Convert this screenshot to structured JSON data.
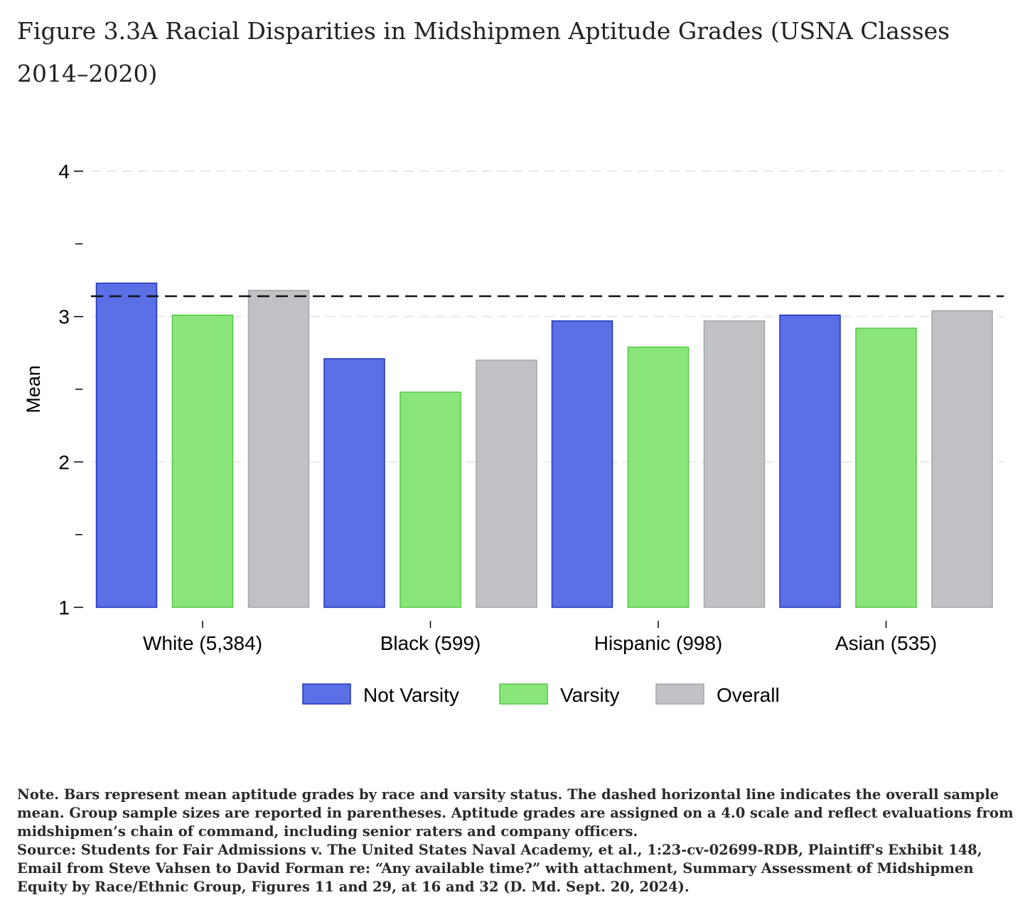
{
  "figure": {
    "title_line1": "Figure 3.3A Racial Disparities in Midshipmen Aptitude Grades (USNA Classes",
    "title_line2": "2014–2020)"
  },
  "chart_data": {
    "type": "bar",
    "ylabel": "Mean",
    "xlabel": "",
    "ylim": [
      1,
      4
    ],
    "yticks_labeled": [
      1,
      2,
      3,
      4
    ],
    "yticks_minor": [
      1.5,
      2.5,
      3.5
    ],
    "grid": true,
    "categories": [
      "White (5,384)",
      "Black (599)",
      "Hispanic (998)",
      "Asian (535)"
    ],
    "series": [
      {
        "name": "Not Varsity",
        "color": "#5b6fe6",
        "edge": "#2233bb",
        "values": [
          3.23,
          2.71,
          2.97,
          3.01
        ]
      },
      {
        "name": "Varsity",
        "color": "#8ae57a",
        "edge": "#55c845",
        "values": [
          3.01,
          2.48,
          2.79,
          2.92
        ]
      },
      {
        "name": "Overall",
        "color": "#c0c1c4",
        "edge": "#a4a5a8",
        "values": [
          3.18,
          2.7,
          2.97,
          3.04
        ]
      }
    ],
    "reference_line": {
      "value": 3.14,
      "style": "dashed",
      "meaning": "overall sample mean"
    },
    "legend_position": "bottom-center"
  },
  "note": {
    "text": "Note. Bars represent mean aptitude grades by race and varsity status. The dashed horizontal line indicates the overall sample mean. Group sample sizes are reported in parentheses. Aptitude grades are assigned on a 4.0 scale and reflect evaluations from midshipmen’s chain of command, including senior raters and company officers.",
    "source": "Source: Students for Fair Admissions v. The United States Naval Academy, et al., 1:23-cv-02699-RDB, Plaintiff's Exhibit 148, Email from Steve Vahsen to David Forman re: “Any available time?” with attachment, Summary Assessment of Midshipmen Equity by Race/Ethnic Group, Figures 11 and 29, at 16 and 32 (D. Md. Sept. 20, 2024)."
  }
}
